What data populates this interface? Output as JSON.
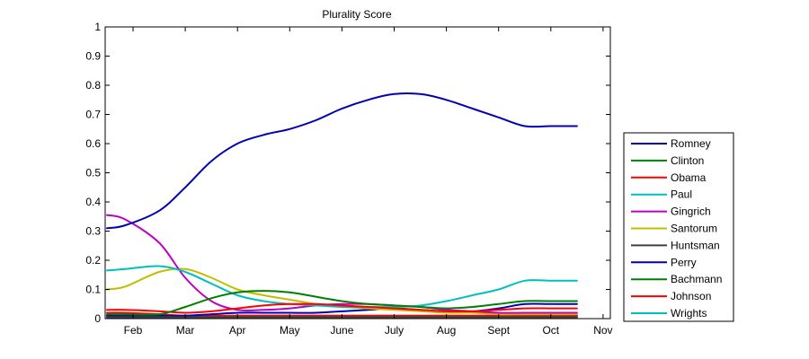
{
  "chart_data": {
    "type": "line",
    "title": "Plurality Score",
    "xlabel": "",
    "ylabel": "",
    "categories": [
      "Feb",
      "Mar",
      "Apr",
      "May",
      "June",
      "July",
      "Aug",
      "Sept",
      "Oct",
      "Nov"
    ],
    "x": [
      0,
      0.35,
      1,
      1.5,
      2,
      2.5,
      3,
      3.5,
      4,
      4.5,
      5,
      5.5,
      6,
      6.5,
      7,
      7.5,
      8,
      8.5,
      9
    ],
    "ylim": [
      0,
      1
    ],
    "yticks": [
      "0",
      "0.1",
      "0.2",
      "0.3",
      "0.4",
      "0.5",
      "0.6",
      "0.7",
      "0.8",
      "0.9",
      "1"
    ],
    "grid": false,
    "legend_position": "right",
    "series": [
      {
        "name": "Romney",
        "color": "#0000b4",
        "values": [
          0.31,
          0.32,
          0.37,
          0.45,
          0.54,
          0.6,
          0.63,
          0.65,
          0.68,
          0.72,
          0.75,
          0.77,
          0.77,
          0.75,
          0.72,
          0.69,
          0.66,
          0.66,
          0.66
        ]
      },
      {
        "name": "Clinton",
        "color": "#008000",
        "values": [
          0.015,
          0.015,
          0.015,
          0.04,
          0.07,
          0.09,
          0.095,
          0.09,
          0.075,
          0.06,
          0.05,
          0.045,
          0.04,
          0.035,
          0.04,
          0.05,
          0.06,
          0.06,
          0.06
        ]
      },
      {
        "name": "Obama",
        "color": "#ff0000",
        "values": [
          0.03,
          0.03,
          0.025,
          0.02,
          0.025,
          0.035,
          0.045,
          0.05,
          0.05,
          0.045,
          0.04,
          0.035,
          0.03,
          0.025,
          0.025,
          0.03,
          0.035,
          0.035,
          0.035
        ]
      },
      {
        "name": "Paul",
        "color": "#00bfbf",
        "values": [
          0.165,
          0.17,
          0.18,
          0.16,
          0.12,
          0.08,
          0.06,
          0.05,
          0.045,
          0.04,
          0.04,
          0.04,
          0.045,
          0.06,
          0.08,
          0.1,
          0.13,
          0.13,
          0.13
        ]
      },
      {
        "name": "Gingrich",
        "color": "#bf00bf",
        "values": [
          0.355,
          0.34,
          0.26,
          0.14,
          0.06,
          0.03,
          0.03,
          0.035,
          0.045,
          0.05,
          0.05,
          0.045,
          0.04,
          0.03,
          0.025,
          0.02,
          0.02,
          0.02,
          0.02
        ]
      },
      {
        "name": "Santorum",
        "color": "#bfbf00",
        "values": [
          0.1,
          0.11,
          0.16,
          0.17,
          0.14,
          0.1,
          0.08,
          0.065,
          0.05,
          0.04,
          0.035,
          0.03,
          0.025,
          0.02,
          0.02,
          0.015,
          0.015,
          0.015,
          0.015
        ]
      },
      {
        "name": "Huntsman",
        "color": "#404040",
        "values": [
          0.005,
          0.005,
          0.005,
          0.005,
          0.005,
          0.005,
          0.005,
          0.005,
          0.005,
          0.005,
          0.005,
          0.005,
          0.005,
          0.005,
          0.005,
          0.005,
          0.005,
          0.005,
          0.005
        ]
      },
      {
        "name": "Perry",
        "color": "#0000b4",
        "values": [
          0.01,
          0.01,
          0.01,
          0.01,
          0.015,
          0.02,
          0.02,
          0.02,
          0.02,
          0.025,
          0.03,
          0.035,
          0.03,
          0.025,
          0.025,
          0.035,
          0.05,
          0.05,
          0.05
        ]
      },
      {
        "name": "Bachmann",
        "color": "#008000",
        "values": [
          0.005,
          0.005,
          0.005,
          0.005,
          0.005,
          0.005,
          0.005,
          0.005,
          0.005,
          0.005,
          0.005,
          0.005,
          0.005,
          0.005,
          0.005,
          0.005,
          0.005,
          0.005,
          0.005
        ]
      },
      {
        "name": "Johnson",
        "color": "#ff0000",
        "values": [
          0.02,
          0.02,
          0.015,
          0.01,
          0.01,
          0.01,
          0.01,
          0.01,
          0.01,
          0.01,
          0.01,
          0.01,
          0.01,
          0.01,
          0.01,
          0.01,
          0.01,
          0.01,
          0.01
        ]
      },
      {
        "name": "Wrights",
        "color": "#00bfbf",
        "values": [
          0.005,
          0.005,
          0.005,
          0.005,
          0.005,
          0.01,
          0.01,
          0.01,
          0.01,
          0.01,
          0.01,
          0.01,
          0.01,
          0.01,
          0.01,
          0.01,
          0.01,
          0.01,
          0.01
        ]
      }
    ]
  }
}
